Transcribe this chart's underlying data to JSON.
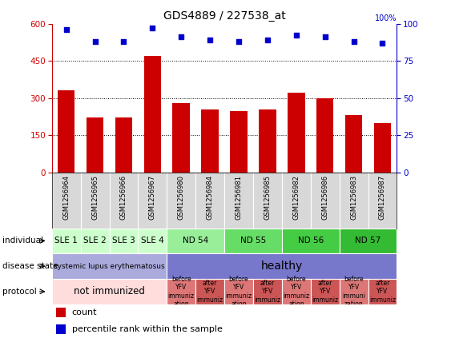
{
  "title": "GDS4889 / 227538_at",
  "samples": [
    "GSM1256964",
    "GSM1256965",
    "GSM1256966",
    "GSM1256967",
    "GSM1256980",
    "GSM1256984",
    "GSM1256981",
    "GSM1256985",
    "GSM1256982",
    "GSM1256986",
    "GSM1256983",
    "GSM1256987"
  ],
  "counts": [
    330,
    220,
    220,
    470,
    278,
    255,
    248,
    255,
    320,
    300,
    230,
    200
  ],
  "percentile": [
    96,
    88,
    88,
    97,
    91,
    89,
    88,
    89,
    92,
    91,
    88,
    87
  ],
  "ylim_left": [
    0,
    600
  ],
  "ylim_right": [
    0,
    100
  ],
  "yticks_left": [
    0,
    150,
    300,
    450,
    600
  ],
  "yticks_right": [
    0,
    25,
    50,
    75,
    100
  ],
  "bar_color": "#cc0000",
  "dot_color": "#0000cc",
  "individual_groups": [
    {
      "label": "SLE 1",
      "start": 0,
      "end": 1,
      "color": "#ccffcc"
    },
    {
      "label": "SLE 2",
      "start": 1,
      "end": 2,
      "color": "#ccffcc"
    },
    {
      "label": "SLE 3",
      "start": 2,
      "end": 3,
      "color": "#ccffcc"
    },
    {
      "label": "SLE 4",
      "start": 3,
      "end": 4,
      "color": "#ccffcc"
    },
    {
      "label": "ND 54",
      "start": 4,
      "end": 6,
      "color": "#99ee99"
    },
    {
      "label": "ND 55",
      "start": 6,
      "end": 8,
      "color": "#66dd66"
    },
    {
      "label": "ND 56",
      "start": 8,
      "end": 10,
      "color": "#44cc44"
    },
    {
      "label": "ND 57",
      "start": 10,
      "end": 12,
      "color": "#33bb33"
    }
  ],
  "disease_groups": [
    {
      "label": "systemic lupus erythematosus",
      "start": 0,
      "end": 4,
      "color": "#aaaadd",
      "fontsize": 6.5
    },
    {
      "label": "healthy",
      "start": 4,
      "end": 12,
      "color": "#7777cc",
      "fontsize": 10
    }
  ],
  "protocol_groups": [
    {
      "label": "not immunized",
      "start": 0,
      "end": 4,
      "color": "#ffdddd",
      "fontsize": 8.5
    },
    {
      "label": "before\nYFV\nimmuniz\nation",
      "start": 4,
      "end": 5,
      "color": "#dd7777",
      "fontsize": 5.5
    },
    {
      "label": "after\nYFV\nimmuniz",
      "start": 5,
      "end": 6,
      "color": "#cc5555",
      "fontsize": 5.5
    },
    {
      "label": "before\nYFV\nimmuniz\nation",
      "start": 6,
      "end": 7,
      "color": "#dd7777",
      "fontsize": 5.5
    },
    {
      "label": "after\nYFV\nimmuniz",
      "start": 7,
      "end": 8,
      "color": "#cc5555",
      "fontsize": 5.5
    },
    {
      "label": "before\nYFV\nimmuniz\nation",
      "start": 8,
      "end": 9,
      "color": "#dd7777",
      "fontsize": 5.5
    },
    {
      "label": "after\nYFV\nimmuniz",
      "start": 9,
      "end": 10,
      "color": "#cc5555",
      "fontsize": 5.5
    },
    {
      "label": "before\nYFV\nimmuni\nzation",
      "start": 10,
      "end": 11,
      "color": "#dd7777",
      "fontsize": 5.5
    },
    {
      "label": "after\nYFV\nimmuniz",
      "start": 11,
      "end": 12,
      "color": "#cc5555",
      "fontsize": 5.5
    }
  ],
  "row_labels": [
    "individual",
    "disease state",
    "protocol"
  ],
  "legend_items": [
    {
      "color": "#cc0000",
      "label": "count"
    },
    {
      "color": "#0000cc",
      "label": "percentile rank within the sample"
    }
  ],
  "chart_bg": "#e8e8e8",
  "xticklabel_bg": "#d8d8d8"
}
